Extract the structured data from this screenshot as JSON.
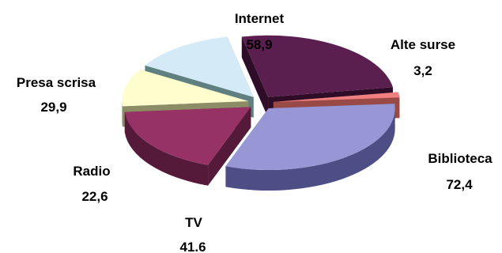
{
  "chart_data": {
    "type": "pie",
    "title": "",
    "style": "3d-exploded",
    "slices": [
      {
        "label": "Internet",
        "value": 58.9,
        "value_text": "58,9",
        "color": "#5b1f4f",
        "side": "#2f0d28"
      },
      {
        "label": "Alte surse",
        "value": 3.2,
        "value_text": "3,2",
        "color": "#f07f7f",
        "side": "#9a4a46"
      },
      {
        "label": "Biblioteca",
        "value": 72.4,
        "value_text": "72,4",
        "color": "#9797d6",
        "side": "#4e4e86"
      },
      {
        "label": "TV",
        "value": 41.6,
        "value_text": "41.6",
        "color": "#973266",
        "side": "#551a3a"
      },
      {
        "label": "Radio",
        "value": 22.6,
        "value_text": "22,6",
        "color": "#fdfdce",
        "side": "#8c8c66"
      },
      {
        "label": "Presa scrisa",
        "value": 29.9,
        "value_text": "29,9",
        "color": "#d4eaf6",
        "side": "#5f7f80"
      }
    ]
  }
}
